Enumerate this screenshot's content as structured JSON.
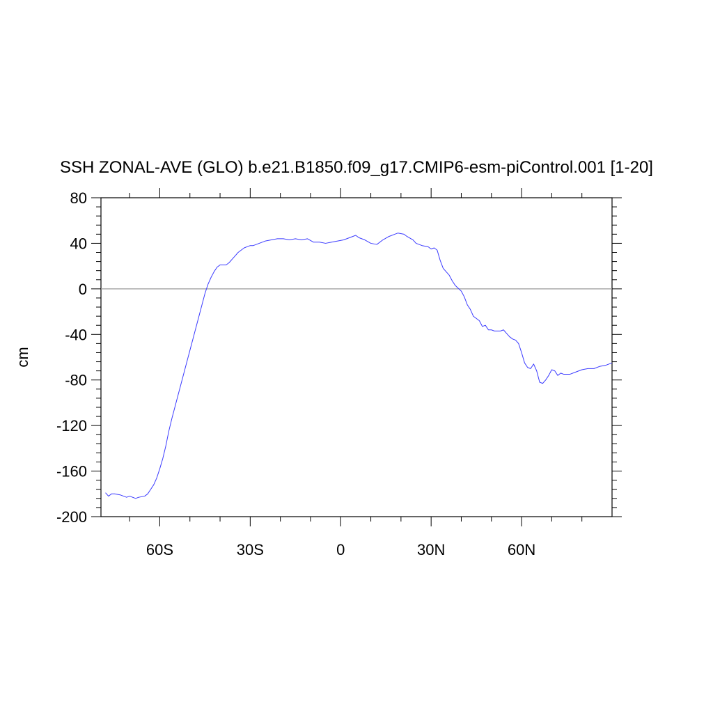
{
  "chart_data": {
    "type": "line",
    "title": "SSH ZONAL-AVE (GLO) b.e21.B1850.f09_g17.CMIP6-esm-piControl.001 [1-20]",
    "xlabel": "",
    "ylabel": "cm",
    "xlim": [
      -79.5,
      90
    ],
    "ylim": [
      -200,
      80
    ],
    "x_ticks": [
      {
        "value": -60,
        "label": "60S"
      },
      {
        "value": -30,
        "label": "30S"
      },
      {
        "value": 0,
        "label": "0"
      },
      {
        "value": 30,
        "label": "30N"
      },
      {
        "value": 60,
        "label": "60N"
      }
    ],
    "y_ticks": [
      {
        "value": 80,
        "label": "80"
      },
      {
        "value": 40,
        "label": "40"
      },
      {
        "value": 0,
        "label": "0"
      },
      {
        "value": -40,
        "label": "-40"
      },
      {
        "value": -80,
        "label": "-80"
      },
      {
        "value": -120,
        "label": "-120"
      },
      {
        "value": -160,
        "label": "-160"
      },
      {
        "value": -200,
        "label": "-200"
      }
    ],
    "reference_line": 0,
    "grid": false,
    "series": [
      {
        "color": "#3a3aff",
        "x": [
          -78,
          -77,
          -76,
          -75,
          -73,
          -71,
          -70,
          -69,
          -68,
          -67,
          -65,
          -64,
          -63,
          -62,
          -61,
          -60,
          -59,
          -58,
          -57,
          -56,
          -55,
          -54,
          -53,
          -52,
          -51,
          -50,
          -49,
          -48,
          -47,
          -46,
          -45,
          -44,
          -43,
          -42,
          -41,
          -40,
          -39,
          -38,
          -37,
          -36,
          -35,
          -34,
          -33,
          -32,
          -31,
          -30,
          -29,
          -27,
          -25,
          -23,
          -21,
          -19,
          -17,
          -15,
          -13,
          -11,
          -9,
          -7,
          -5,
          -3,
          -1,
          1,
          3,
          5,
          6,
          8,
          10,
          12,
          14,
          16,
          18,
          19,
          21,
          22,
          24,
          25,
          27,
          29,
          30,
          31,
          32,
          33,
          34,
          36,
          37,
          38,
          40,
          41,
          42,
          43,
          44,
          45,
          46,
          47,
          48,
          49,
          50,
          51,
          52,
          53,
          54,
          55,
          56,
          57,
          58,
          59,
          60,
          61,
          62,
          63,
          64,
          65,
          66,
          67,
          68,
          69,
          70,
          71,
          72,
          73,
          74,
          76,
          78,
          80,
          82,
          84,
          86,
          88,
          90
        ],
        "y": [
          -179,
          -182,
          -180,
          -180,
          -181,
          -183,
          -182,
          -183,
          -184,
          -183,
          -182,
          -180,
          -176,
          -172,
          -166,
          -158,
          -149,
          -138,
          -125,
          -114,
          -104,
          -94,
          -84,
          -74,
          -64,
          -54,
          -44,
          -34,
          -24,
          -14,
          -4,
          4,
          10,
          15,
          19,
          21,
          21,
          21,
          23,
          26,
          29,
          32,
          34,
          36,
          37,
          38,
          38,
          40,
          42,
          43,
          44,
          44,
          43,
          44,
          43,
          44,
          41,
          41,
          40,
          41,
          42,
          43,
          45,
          47,
          45,
          43,
          40,
          39,
          43,
          46,
          48,
          49,
          48,
          46,
          43,
          40,
          38,
          37,
          35,
          36,
          34,
          25,
          18,
          12,
          7,
          3,
          -2,
          -7,
          -14,
          -18,
          -24,
          -26,
          -28,
          -33,
          -32,
          -36,
          -36,
          -37,
          -37,
          -37,
          -36,
          -39,
          -42,
          -44,
          -45,
          -48,
          -56,
          -65,
          -69,
          -70,
          -66,
          -72,
          -82,
          -83,
          -80,
          -76,
          -71,
          -72,
          -76,
          -74,
          -75,
          -75,
          -73,
          -71,
          -70,
          -70,
          -68,
          -67,
          -65
        ]
      }
    ]
  }
}
